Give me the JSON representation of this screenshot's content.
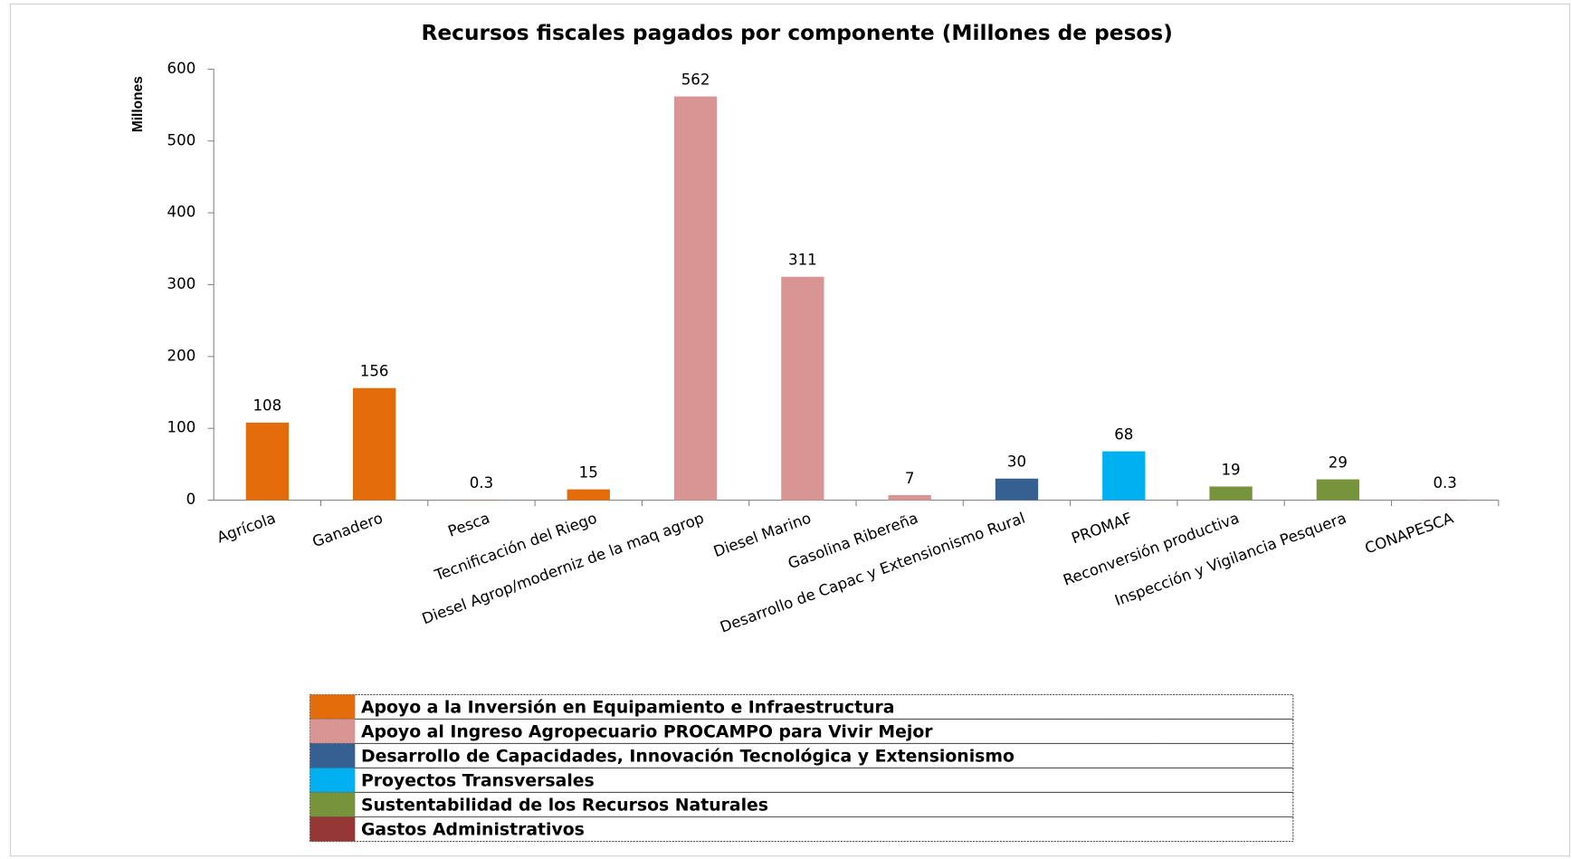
{
  "chart_data": {
    "type": "bar",
    "title": "Recursos fiscales pagados por componente (Millones de pesos)",
    "y_label": "Millones",
    "categories": [
      "Agrícola",
      "Ganadero",
      "Pesca",
      "Tecnificación del Riego",
      "Diesel Agrop/moderniz de la maq agrop",
      "Diesel Marino",
      "Gasolina Ribereña",
      "Desarrollo de Capac y Extensionismo Rural",
      "PROMAF",
      "Reconversión productiva",
      "Inspección y Vigilancia Pesquera",
      "CONAPESCA"
    ],
    "series": [
      {
        "name": "Apoyo a la Inversión en Equipamiento e Infraestructura",
        "color": "#e36c0a",
        "values": [
          108,
          156,
          0.3,
          15,
          null,
          null,
          null,
          null,
          null,
          null,
          null,
          null
        ]
      },
      {
        "name": "Apoyo al Ingreso Agropecuario PROCAMPO para Vivir Mejor",
        "color": "#d99594",
        "values": [
          null,
          null,
          null,
          null,
          562,
          311,
          7,
          null,
          null,
          null,
          null,
          null
        ]
      },
      {
        "name": "Desarrollo de Capacidades, Innovación Tecnológica y Extensionismo",
        "color": "#366092",
        "values": [
          null,
          null,
          null,
          null,
          null,
          null,
          null,
          30,
          null,
          null,
          null,
          null
        ]
      },
      {
        "name": "Proyectos Transversales",
        "color": "#00b0f0",
        "values": [
          null,
          null,
          null,
          null,
          null,
          null,
          null,
          null,
          68,
          null,
          null,
          null
        ]
      },
      {
        "name": "Sustentabilidad de los Recursos Naturales",
        "color": "#77933c",
        "values": [
          null,
          null,
          null,
          null,
          null,
          null,
          null,
          null,
          null,
          19,
          29,
          null
        ]
      },
      {
        "name": "Gastos Administrativos",
        "color": "#953735",
        "values": [
          null,
          null,
          null,
          null,
          null,
          null,
          null,
          null,
          null,
          null,
          null,
          0.3
        ]
      }
    ],
    "ylim": [
      0,
      600
    ],
    "yticks": [
      0,
      100,
      200,
      300,
      400,
      500,
      600
    ],
    "grid": false,
    "legend": "bottom"
  }
}
